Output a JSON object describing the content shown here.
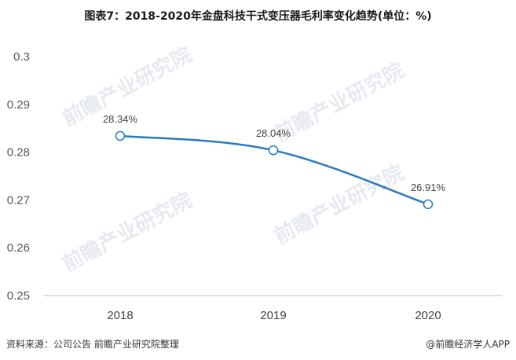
{
  "title": "图表7：2018-2020年金盘科技干式变压器毛利率变化趋势(单位：%)",
  "source": "资料来源：公司公告 前瞻产业研究院整理",
  "brand": "@前瞻经济学人APP",
  "watermark": "前瞻产业研究院",
  "colors": {
    "line": "#2a7bbd",
    "axis": "#bfbfbf"
  },
  "chart_data": {
    "type": "line",
    "categories": [
      "2018",
      "2019",
      "2020"
    ],
    "values": [
      0.2834,
      0.2804,
      0.2691
    ],
    "data_labels": [
      "28.34%",
      "28.04%",
      "26.91%"
    ],
    "y_ticks": [
      "0.3",
      "0.29",
      "0.28",
      "0.27",
      "0.26",
      "0.25"
    ],
    "ylim": [
      0.25,
      0.3
    ],
    "grid": false,
    "legend": "none"
  }
}
